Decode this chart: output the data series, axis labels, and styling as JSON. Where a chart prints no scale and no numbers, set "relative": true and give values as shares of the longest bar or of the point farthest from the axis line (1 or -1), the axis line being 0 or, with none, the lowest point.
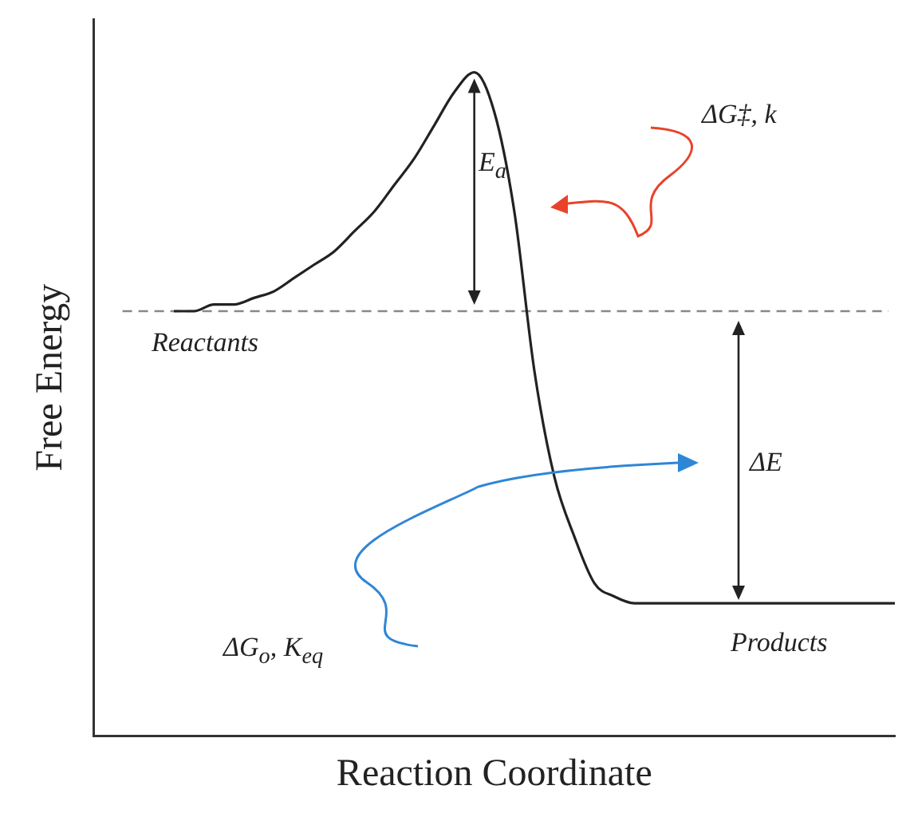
{
  "chart_data": {
    "type": "line",
    "relative": true,
    "xlabel": "Reaction Coordinate",
    "ylabel": "Free Energy",
    "categories": [
      null,
      null,
      null,
      null,
      null,
      null,
      null,
      null,
      null,
      null,
      null,
      null,
      null,
      null,
      null,
      null,
      null,
      null,
      null,
      null,
      null,
      null,
      null,
      null,
      null,
      null,
      null,
      null,
      null,
      null,
      null,
      null,
      null,
      null,
      null,
      null,
      null,
      null,
      null,
      null,
      null
    ],
    "series": [
      {
        "color": "#222222",
        "values": [
          null,
          null,
          null,
          null,
          0.64,
          0.64,
          0.65,
          0.65,
          0.66,
          0.67,
          0.69,
          0.71,
          0.73,
          0.76,
          0.79,
          0.83,
          0.87,
          0.92,
          0.97,
          1.0,
          0.94,
          0.79,
          0.55,
          0.39,
          0.3,
          0.23,
          0.21,
          0.2,
          0.2,
          0.2,
          0.2,
          0.2,
          0.2,
          0.2,
          0.2,
          0.2,
          0.2,
          0.2,
          0.2,
          0.2,
          0.2
        ]
      }
    ],
    "ref_lines": [
      {
        "axis": "y",
        "value": 0.64,
        "color": "#888888",
        "line_style": "dashed"
      }
    ],
    "annotations": [
      "Reactants",
      "Products",
      "E$_{a}$",
      "ΔE",
      "ΔG‡, k",
      "ΔG$_{o}$, K$_{eq}$"
    ],
    "marker": "none",
    "line_style": "solid",
    "grid": false,
    "legend": false
  }
}
